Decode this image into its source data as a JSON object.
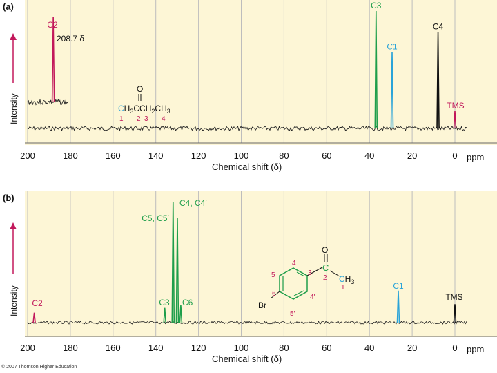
{
  "colors": {
    "plot_bg": "#fdf6d6",
    "grid": "#bdbdbd",
    "magenta": "#c2185b",
    "green": "#1e9e4a",
    "blue": "#29a3d8",
    "black": "#111111",
    "trace": "#222222"
  },
  "copyright": "© 2007 Thomson Higher Education",
  "chart_data": [
    {
      "type": "line",
      "panel_label": "(a)",
      "xlabel": "Chemical shift (δ)",
      "ylabel": "Intensity",
      "x_unit": "ppm",
      "xlim": [
        200,
        -5
      ],
      "x_reversed": true,
      "grid": true,
      "x_ticks": [
        "200",
        "180",
        "160",
        "140",
        "120",
        "100",
        "80",
        "60",
        "40",
        "20",
        "0"
      ],
      "peaks": [
        {
          "label": "C2",
          "delta": 208.7,
          "intensity": 0.95,
          "color_key": "magenta",
          "note": "208.7 δ",
          "offset_inset": true
        },
        {
          "label": "C3",
          "delta": 36.9,
          "intensity": 1.0,
          "color_key": "green"
        },
        {
          "label": "C1",
          "delta": 29.4,
          "intensity": 0.65,
          "color_key": "blue"
        },
        {
          "label": "C4",
          "delta": 7.9,
          "intensity": 0.82,
          "color_key": "black"
        },
        {
          "label": "TMS",
          "delta": 0,
          "intensity": 0.15,
          "color_key": "magenta"
        }
      ],
      "structure": {
        "carbonyl_o": "O",
        "formula": "CH3CCH2CH3",
        "parts": [
          "C",
          "H",
          "3",
          "C",
          "C",
          "H",
          "2",
          "C",
          "H",
          "3"
        ],
        "numbers": [
          "1",
          "2",
          "3",
          "4"
        ]
      }
    },
    {
      "type": "line",
      "panel_label": "(b)",
      "xlabel": "Chemical shift (δ)",
      "ylabel": "Intensity",
      "x_unit": "ppm",
      "xlim": [
        200,
        -5
      ],
      "x_reversed": true,
      "grid": true,
      "x_ticks": [
        "200",
        "180",
        "160",
        "140",
        "120",
        "100",
        "80",
        "60",
        "40",
        "20",
        "0"
      ],
      "peaks": [
        {
          "label": "C2",
          "delta": 196.9,
          "intensity": 0.08,
          "color_key": "magenta"
        },
        {
          "label": "C4, C4′",
          "delta": 131.9,
          "intensity": 0.98,
          "color_key": "green"
        },
        {
          "label": "C5, C5′",
          "delta": 129.9,
          "intensity": 0.85,
          "color_key": "green"
        },
        {
          "label": "C3",
          "delta": 135.8,
          "intensity": 0.12,
          "color_key": "green"
        },
        {
          "label": "C6",
          "delta": 128.3,
          "intensity": 0.14,
          "color_key": "green"
        },
        {
          "label": "C1",
          "delta": 26.5,
          "intensity": 0.26,
          "color_key": "blue"
        },
        {
          "label": "TMS",
          "delta": 0,
          "intensity": 0.15,
          "color_key": "black"
        }
      ],
      "structure": {
        "carbonyl_o": "O",
        "substituent": "Br",
        "ring_numbers": [
          "4",
          "5",
          "3",
          "6",
          "4′",
          "5′"
        ],
        "chain_c": "C",
        "methyl": "CH3",
        "chain_numbers": [
          "2",
          "1"
        ]
      }
    }
  ]
}
